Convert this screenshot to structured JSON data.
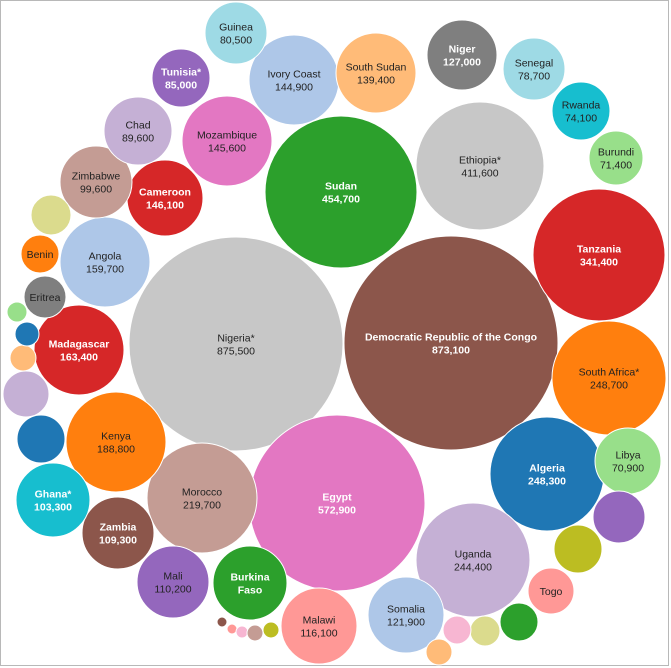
{
  "chart_data": {
    "type": "bubble",
    "items": [
      {
        "label": "Nigeria*",
        "value": "875,500",
        "color": "#c7c7c7"
      },
      {
        "label": "Democratic Republic of the Congo",
        "value": "873,100",
        "color": "#8c564b"
      },
      {
        "label": "Egypt",
        "value": "572,900",
        "color": "#e377c2"
      },
      {
        "label": "Sudan",
        "value": "454,700",
        "color": "#2ca02c"
      },
      {
        "label": "Ethiopia*",
        "value": "411,600",
        "color": "#c7c7c7"
      },
      {
        "label": "Tanzania",
        "value": "341,400",
        "color": "#d62728"
      },
      {
        "label": "South Africa*",
        "value": "248,700",
        "color": "#ff7f0e"
      },
      {
        "label": "Algeria",
        "value": "248,300",
        "color": "#1f77b4"
      },
      {
        "label": "Uganda",
        "value": "244,400",
        "color": "#c5b0d5"
      },
      {
        "label": "Morocco",
        "value": "219,700",
        "color": "#c49c94"
      },
      {
        "label": "Kenya",
        "value": "188,800",
        "color": "#ff7f0e"
      },
      {
        "label": "Madagascar",
        "value": "163,400",
        "color": "#d62728"
      },
      {
        "label": "Angola",
        "value": "159,700",
        "color": "#aec7e8"
      },
      {
        "label": "Cameroon",
        "value": "146,100",
        "color": "#d62728"
      },
      {
        "label": "Mozambique",
        "value": "145,600",
        "color": "#e377c2"
      },
      {
        "label": "Ivory Coast",
        "value": "144,900",
        "color": "#aec7e8"
      },
      {
        "label": "South Sudan",
        "value": "139,400",
        "color": "#ffbb78"
      },
      {
        "label": "Niger",
        "value": "127,000",
        "color": "#7f7f7f"
      },
      {
        "label": "Somalia",
        "value": "121,900",
        "color": "#aec7e8"
      },
      {
        "label": "Malawi",
        "value": "116,100",
        "color": "#ff9896"
      },
      {
        "label": "Mali",
        "value": "110,200",
        "color": "#9467bd"
      },
      {
        "label": "Zambia",
        "value": "109,300",
        "color": "#8c564b"
      },
      {
        "label": "Ghana*",
        "value": "103,300",
        "color": "#17becf"
      },
      {
        "label": "Zimbabwe",
        "value": "99,600",
        "color": "#c49c94"
      },
      {
        "label": "Chad",
        "value": "89,600",
        "color": "#c5b0d5"
      },
      {
        "label": "Tunisia*",
        "value": "85,000",
        "color": "#9467bd"
      },
      {
        "label": "Guinea",
        "value": "80,500",
        "color": "#9edae5"
      },
      {
        "label": "Senegal",
        "value": "78,700",
        "color": "#9edae5"
      },
      {
        "label": "Rwanda",
        "value": "74,100",
        "color": "#17becf"
      },
      {
        "label": "Burundi",
        "value": "71,400",
        "color": "#98df8a"
      },
      {
        "label": "Libya",
        "value": "70,900",
        "color": "#98df8a"
      },
      {
        "label": "Burkina Faso",
        "value": "",
        "color": "#2ca02c"
      },
      {
        "label": "Togo",
        "value": "",
        "color": "#ff9896"
      },
      {
        "label": "Benin",
        "value": "",
        "color": "#ff7f0e"
      },
      {
        "label": "Eritrea",
        "value": "",
        "color": "#7f7f7f"
      },
      {
        "label": "",
        "value": "",
        "color": "#9467bd"
      },
      {
        "label": "",
        "value": "",
        "color": "#bcbd22"
      },
      {
        "label": "",
        "value": "",
        "color": "#2ca02c"
      },
      {
        "label": "",
        "value": "",
        "color": "#dbdb8d"
      },
      {
        "label": "",
        "value": "",
        "color": "#f7b6d2"
      },
      {
        "label": "",
        "value": "",
        "color": "#ffbb78"
      },
      {
        "label": "",
        "value": "",
        "color": "#1f77b4"
      },
      {
        "label": "",
        "value": "",
        "color": "#c5b0d5"
      },
      {
        "label": "",
        "value": "",
        "color": "#ffbb78"
      },
      {
        "label": "",
        "value": "",
        "color": "#1f77b4"
      },
      {
        "label": "",
        "value": "",
        "color": "#98df8a"
      },
      {
        "label": "",
        "value": "",
        "color": "#dbdb8d"
      },
      {
        "label": "",
        "value": "",
        "color": "#8c564b"
      },
      {
        "label": "",
        "value": "",
        "color": "#ff9896"
      },
      {
        "label": "",
        "value": "",
        "color": "#f7b6d2"
      },
      {
        "label": "",
        "value": "",
        "color": "#c49c94"
      },
      {
        "label": "",
        "value": "",
        "color": "#bcbd22"
      }
    ]
  }
}
